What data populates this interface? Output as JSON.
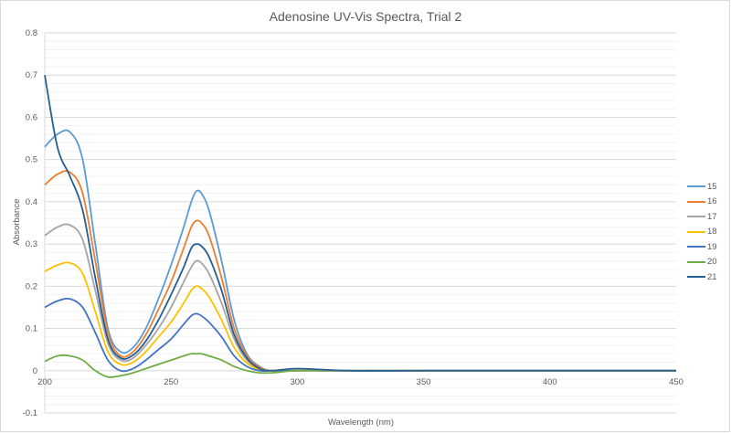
{
  "chart": {
    "title": "Adenosine UV-Vis Spectra, Trial 2",
    "xlabel": "Wavelength (nm)",
    "ylabel": "Absorbance"
  },
  "chart_data": {
    "type": "line",
    "title": "Adenosine UV-Vis Spectra, Trial 2",
    "xlabel": "Wavelength (nm)",
    "ylabel": "Absorbance",
    "xlim": [
      200,
      450
    ],
    "ylim": [
      -0.1,
      0.8
    ],
    "xticks": [
      "200",
      "250",
      "300",
      "350",
      "400",
      "450"
    ],
    "yticks": [
      "-0.1",
      "0",
      "0.1",
      "0.2",
      "0.3",
      "0.4",
      "0.5",
      "0.6",
      "0.7",
      "0.8"
    ],
    "grid": true,
    "legend_position": "right",
    "x": [
      200,
      205,
      210,
      215,
      220,
      225,
      230,
      235,
      240,
      245,
      250,
      255,
      258,
      260,
      262,
      265,
      270,
      275,
      280,
      285,
      290,
      300,
      320,
      350,
      400,
      450
    ],
    "series": [
      {
        "name": "15",
        "color": "#5B9BD5",
        "values": [
          0.53,
          0.56,
          0.565,
          0.5,
          0.3,
          0.1,
          0.045,
          0.055,
          0.1,
          0.17,
          0.25,
          0.34,
          0.4,
          0.425,
          0.42,
          0.38,
          0.26,
          0.12,
          0.04,
          0.01,
          0.0,
          0.0,
          0.0,
          0.0,
          0.0,
          0.0
        ]
      },
      {
        "name": "16",
        "color": "#ED7D31",
        "values": [
          0.44,
          0.465,
          0.47,
          0.42,
          0.26,
          0.09,
          0.035,
          0.045,
          0.085,
          0.145,
          0.21,
          0.29,
          0.34,
          0.355,
          0.35,
          0.32,
          0.22,
          0.1,
          0.035,
          0.008,
          0.0,
          0.0,
          0.0,
          0.0,
          0.0,
          0.0
        ]
      },
      {
        "name": "17",
        "color": "#A5A5A5",
        "values": [
          0.32,
          0.34,
          0.345,
          0.31,
          0.19,
          0.065,
          0.025,
          0.03,
          0.06,
          0.1,
          0.15,
          0.21,
          0.245,
          0.26,
          0.255,
          0.23,
          0.16,
          0.075,
          0.025,
          0.005,
          0.0,
          0.0,
          0.0,
          0.0,
          0.0,
          0.0
        ]
      },
      {
        "name": "18",
        "color": "#FFC000",
        "values": [
          0.235,
          0.25,
          0.255,
          0.23,
          0.14,
          0.045,
          0.015,
          0.02,
          0.045,
          0.08,
          0.115,
          0.16,
          0.19,
          0.2,
          0.195,
          0.175,
          0.12,
          0.055,
          0.018,
          0.003,
          0.0,
          0.0,
          0.0,
          0.0,
          0.0,
          0.0
        ]
      },
      {
        "name": "19",
        "color": "#4472C4",
        "values": [
          0.15,
          0.165,
          0.17,
          0.15,
          0.09,
          0.025,
          0.0,
          0.005,
          0.025,
          0.05,
          0.075,
          0.11,
          0.13,
          0.135,
          0.13,
          0.115,
          0.08,
          0.035,
          0.01,
          0.0,
          0.0,
          0.0,
          0.0,
          0.0,
          0.0,
          0.0
        ]
      },
      {
        "name": "20",
        "color": "#70AD47",
        "values": [
          0.022,
          0.035,
          0.035,
          0.025,
          0.0,
          -0.015,
          -0.012,
          -0.005,
          0.005,
          0.015,
          0.025,
          0.035,
          0.04,
          0.04,
          0.04,
          0.035,
          0.025,
          0.01,
          0.0,
          -0.005,
          -0.005,
          0.0,
          0.0,
          0.0,
          0.0,
          0.0
        ]
      },
      {
        "name": "21",
        "color": "#255E91",
        "values": [
          0.7,
          0.53,
          0.46,
          0.38,
          0.22,
          0.075,
          0.03,
          0.037,
          0.07,
          0.12,
          0.18,
          0.245,
          0.29,
          0.3,
          0.295,
          0.27,
          0.19,
          0.085,
          0.03,
          0.005,
          0.0,
          0.005,
          0.0,
          0.0,
          0.0,
          0.0
        ]
      }
    ]
  }
}
